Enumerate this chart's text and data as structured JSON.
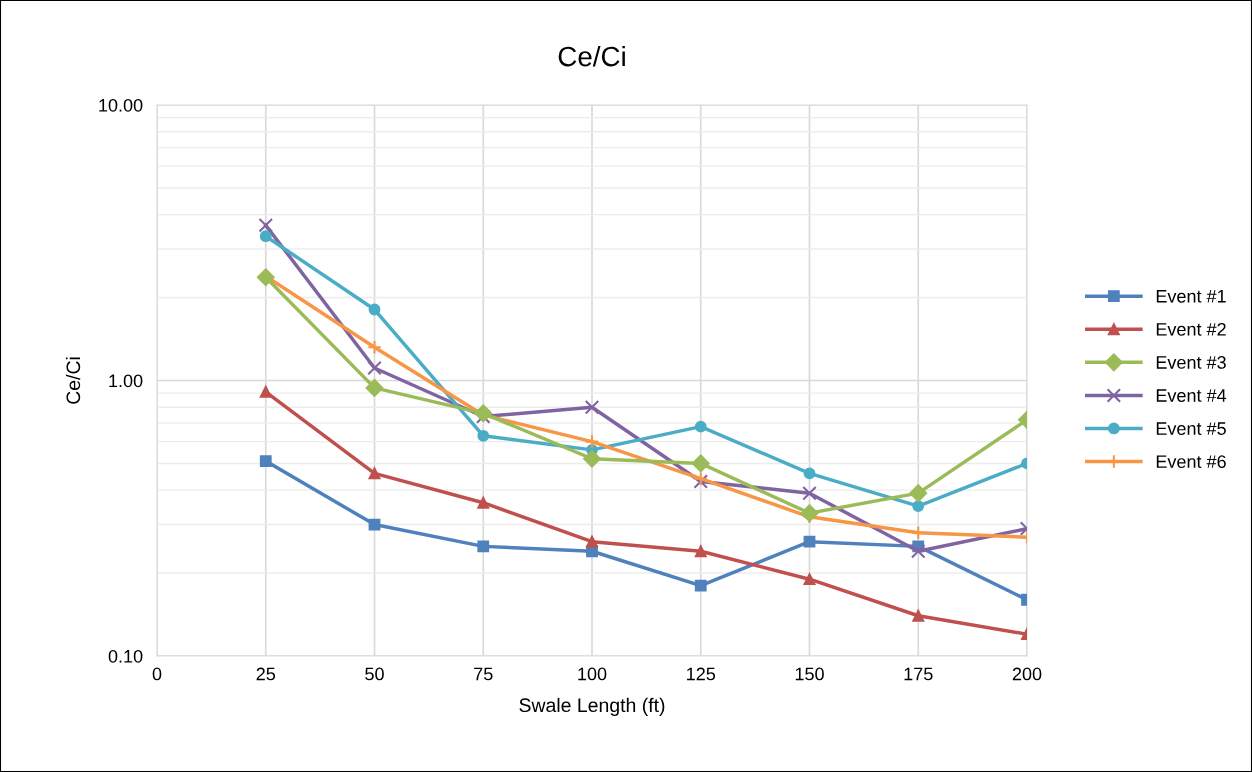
{
  "chart_data": {
    "type": "line",
    "title": "Ce/Ci",
    "xlabel": "Swale Length (ft)",
    "ylabel": "Ce/Ci",
    "x": [
      25,
      50,
      75,
      100,
      125,
      150,
      175,
      200
    ],
    "series": [
      {
        "name": "Event #1",
        "color": "#4f81bd",
        "marker": "square",
        "values": [
          0.51,
          0.3,
          0.25,
          0.24,
          0.18,
          0.26,
          0.25,
          0.16
        ]
      },
      {
        "name": "Event #2",
        "color": "#c0504d",
        "marker": "triangle",
        "values": [
          0.91,
          0.46,
          0.36,
          0.26,
          0.24,
          0.19,
          0.14,
          0.12
        ]
      },
      {
        "name": "Event #3",
        "color": "#9bbb59",
        "marker": "diamond",
        "values": [
          2.37,
          0.94,
          0.76,
          0.52,
          0.5,
          0.33,
          0.39,
          0.72
        ]
      },
      {
        "name": "Event #4",
        "color": "#8064a2",
        "marker": "cross",
        "values": [
          3.66,
          1.11,
          0.74,
          0.8,
          0.43,
          0.39,
          0.24,
          0.29
        ]
      },
      {
        "name": "Event #5",
        "color": "#4bacc6",
        "marker": "circle",
        "values": [
          3.34,
          1.81,
          0.63,
          0.56,
          0.68,
          0.46,
          0.35,
          0.5
        ]
      },
      {
        "name": "Event #6",
        "color": "#f79646",
        "marker": "plus",
        "values": [
          2.39,
          1.32,
          0.75,
          0.6,
          0.44,
          0.32,
          0.28,
          0.27
        ]
      }
    ],
    "log": "y",
    "xlim": [
      0,
      200
    ],
    "xticks": [
      0,
      25,
      50,
      75,
      100,
      125,
      150,
      175,
      200
    ],
    "ylim": [
      0.1,
      10
    ],
    "yticks": [
      {
        "value": 0.1,
        "label": "0.10"
      },
      {
        "value": 1,
        "label": "1.00"
      },
      {
        "value": 10,
        "label": "10.00"
      }
    ],
    "grid": true,
    "legend": "right",
    "line_style": "solid"
  }
}
